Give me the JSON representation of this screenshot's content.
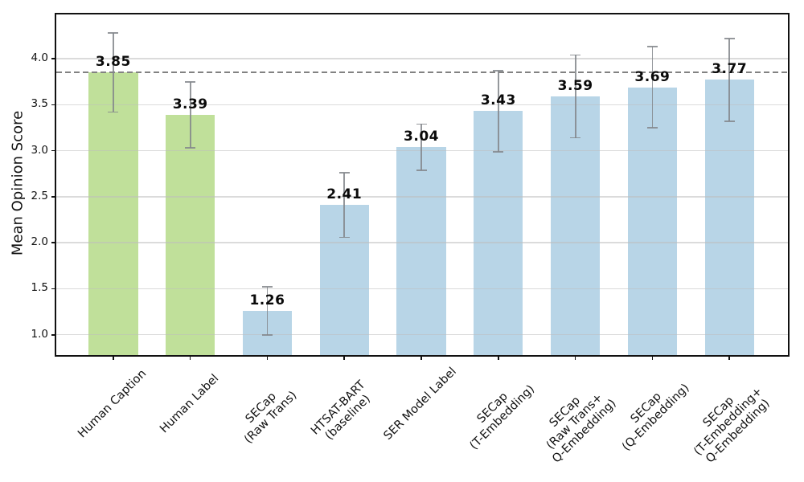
{
  "chart_data": {
    "type": "bar",
    "title": "",
    "xlabel": "",
    "ylabel": "Mean Opinion Score",
    "categories": [
      "Human Caption",
      "Human Label",
      "SECap\n(Raw Trans)",
      "HTSAT-BART\n(baseline)",
      "SER Model Label",
      "SECap\n(T-Embedding)",
      "SECap\n(Raw Trans+\nQ-Embedding)",
      "SECap\n(Q-Embedding)",
      "SECap\n(T-Embedding+\nQ-Embedding)"
    ],
    "values": [
      3.85,
      3.39,
      1.26,
      2.41,
      3.04,
      3.43,
      3.59,
      3.69,
      3.77
    ],
    "value_labels": [
      "3.85",
      "3.39",
      "1.26",
      "2.41",
      "3.04",
      "3.43",
      "3.59",
      "3.69",
      "3.77"
    ],
    "errors": [
      0.43,
      0.36,
      0.26,
      0.35,
      0.25,
      0.44,
      0.45,
      0.44,
      0.45
    ],
    "bar_colors": [
      "#c0e09a",
      "#c0e09a",
      "#b8d5e7",
      "#b8d5e7",
      "#b8d5e7",
      "#b8d5e7",
      "#b8d5e7",
      "#b8d5e7",
      "#b8d5e7"
    ],
    "yticks": [
      1.0,
      1.5,
      2.0,
      2.5,
      3.0,
      3.5,
      4.0
    ],
    "ytick_labels": [
      "1.0",
      "1.5",
      "2.0",
      "2.5",
      "3.0",
      "3.5",
      "4.0"
    ],
    "ylim": [
      0.78,
      4.48
    ],
    "xlim": [
      -0.74,
      8.76
    ],
    "reference_line": {
      "value": 3.85,
      "style": "dashed",
      "color": "#828282"
    },
    "grid": "horizontal",
    "legend": "none",
    "colors": {
      "green_bar": "#c0e09a",
      "blue_bar": "#b8d5e7",
      "error_bar": "#82868b",
      "grid": "#bebebe",
      "spine": "#111111",
      "dashed_line": "#828282",
      "background": "#ffffff"
    }
  }
}
